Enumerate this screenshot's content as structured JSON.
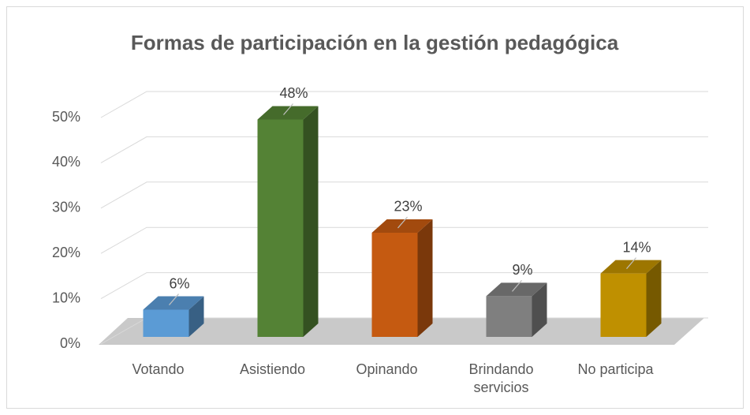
{
  "chart_data": {
    "type": "bar3d",
    "title": "Formas de participación en la gestión pedagógica",
    "categories": [
      "Votando",
      "Asistiendo",
      "Opinando",
      "Brindando servicios",
      "No participa"
    ],
    "values": [
      6,
      48,
      23,
      9,
      14
    ],
    "value_labels": [
      "6%",
      "48%",
      "23%",
      "9%",
      "14%"
    ],
    "colors": [
      "#5b9bd5",
      "#548235",
      "#c55a11",
      "#7f7f7f",
      "#bf9000"
    ],
    "ylim": [
      0,
      50
    ],
    "yticks": [
      {
        "value": 0,
        "label": "0%"
      },
      {
        "value": 10,
        "label": "10%"
      },
      {
        "value": 20,
        "label": "20%"
      },
      {
        "value": 30,
        "label": "30%"
      },
      {
        "value": 40,
        "label": "40%"
      },
      {
        "value": 50,
        "label": "50%"
      }
    ],
    "grid": true
  }
}
